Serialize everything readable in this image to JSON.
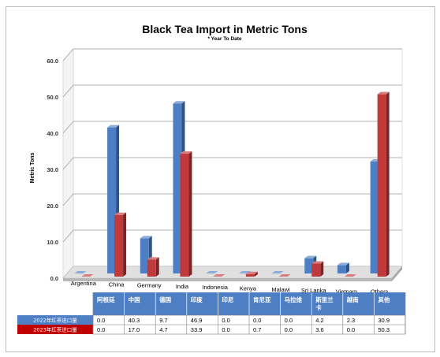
{
  "chart_data": {
    "type": "bar",
    "title": "Black Tea Import in Metric Tons",
    "subtitle": "* Year To Date",
    "ylabel": "Metric Tons",
    "ylim": [
      0,
      60
    ],
    "yticks": [
      "0.0",
      "10.0",
      "20.0",
      "30.0",
      "40.0",
      "50.0",
      "60.0"
    ],
    "grid": true,
    "categories": [
      "Argentina",
      "China",
      "Germany",
      "India",
      "Indonesia",
      "Kenya",
      "Malawi",
      "Sri Lanka",
      "Vietnam",
      "Others"
    ],
    "table_headers": [
      "阿根廷",
      "中国",
      "德国",
      "印度",
      "印尼",
      "肯尼亚",
      "马拉维",
      "斯里兰卡",
      "越南",
      "其他"
    ],
    "series": [
      {
        "name": "2022年红茶进口量",
        "color": "#4e7fc4",
        "values": [
          0.0,
          40.3,
          9.7,
          46.9,
          0.0,
          0.0,
          0.0,
          4.2,
          2.3,
          30.9
        ]
      },
      {
        "name": "2023年红茶进口量",
        "color": "#c0393b",
        "values": [
          0.0,
          17.0,
          4.7,
          33.9,
          0.0,
          0.7,
          0.0,
          3.6,
          0.0,
          50.3
        ]
      }
    ],
    "value_labels": [
      [
        "0.0",
        "40.3",
        "9.7",
        "46.9",
        "0.0",
        "0.0",
        "0.0",
        "4.2",
        "2.3",
        "30.9"
      ],
      [
        "0.0",
        "17.0",
        "4.7",
        "33.9",
        "0.0",
        "0.7",
        "0.0",
        "3.6",
        "0.0",
        "50.3"
      ]
    ]
  },
  "colors": {
    "header_blue": "#4e7fc4",
    "series_blue": "#4e7fc4",
    "series_red": "#c0393b",
    "row_label_red": "#c00000",
    "frame_border": "#bcbcbc"
  }
}
